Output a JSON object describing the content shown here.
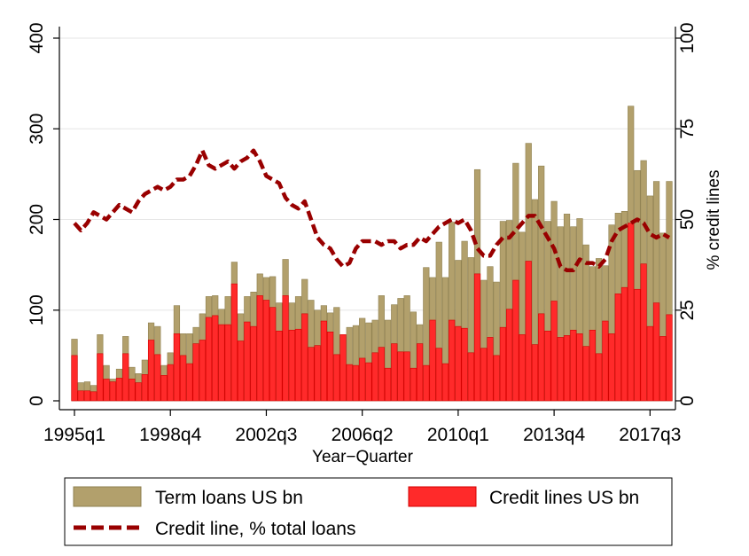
{
  "chart_data": {
    "type": "bar",
    "subtype": "stacked-bar-with-line",
    "title": "",
    "xlabel": "Year−Quarter",
    "ylabel": "",
    "y2label": "% credit lines",
    "ylim": [
      0,
      400
    ],
    "y2lim": [
      0,
      100
    ],
    "yticks": [
      "0",
      "100",
      "200",
      "300",
      "400"
    ],
    "y2ticks": [
      "0",
      "25",
      "50",
      "75",
      "100"
    ],
    "xtick_labels": [
      "1995q1",
      "1998q4",
      "2002q3",
      "2006q2",
      "2010q1",
      "2013q4",
      "2017q3"
    ],
    "grid": true,
    "legend_position": "bottom",
    "colors": {
      "term_loans": "#b2a06c",
      "term_loans_edge": "#8f8050",
      "credit_lines": "#ff2a2a",
      "credit_lines_edge": "#d40000",
      "pct_line": "#990000",
      "grid": "#e6e6e6"
    },
    "series": [
      {
        "name": "Term loans US bn",
        "kind": "bar-total",
        "values": [
          68,
          20,
          21,
          17,
          73,
          39,
          24,
          35,
          71,
          37,
          30,
          45,
          86,
          82,
          39,
          53,
          105,
          74,
          74,
          81,
          96,
          115,
          116,
          101,
          115,
          153,
          96,
          115,
          120,
          140,
          136,
          137,
          108,
          156,
          108,
          115,
          134,
          111,
          100,
          105,
          97,
          103,
          70,
          81,
          83,
          91,
          86,
          89,
          116,
          89,
          106,
          113,
          116,
          98,
          84,
          147,
          136,
          175,
          136,
          197,
          155,
          176,
          158,
          255,
          133,
          148,
          131,
          198,
          199,
          262,
          186,
          284,
          222,
          259,
          198,
          220,
          192,
          206,
          192,
          201,
          172,
          148,
          157,
          149,
          194,
          207,
          209,
          325,
          254,
          265,
          226,
          242,
          185,
          242
        ]
      },
      {
        "name": "Credit lines US bn",
        "kind": "bar-segment",
        "values": [
          50,
          11,
          11,
          10,
          52,
          24,
          21,
          25,
          52,
          24,
          20,
          29,
          67,
          51,
          28,
          40,
          74,
          50,
          41,
          63,
          67,
          92,
          94,
          84,
          84,
          129,
          66,
          87,
          82,
          116,
          111,
          103,
          77,
          116,
          78,
          79,
          96,
          59,
          61,
          88,
          76,
          51,
          73,
          40,
          39,
          47,
          42,
          53,
          59,
          36,
          63,
          54,
          54,
          36,
          63,
          39,
          89,
          58,
          41,
          89,
          82,
          80,
          53,
          140,
          58,
          70,
          50,
          81,
          101,
          133,
          73,
          154,
          62,
          96,
          77,
          110,
          70,
          72,
          78,
          74,
          60,
          78,
          52,
          88,
          74,
          118,
          125,
          196,
          123,
          151,
          82,
          108,
          71,
          95
        ]
      },
      {
        "name": "Credit line, % total loans",
        "kind": "line",
        "axis": "right",
        "values": [
          49,
          47,
          49,
          52,
          51,
          50,
          52,
          54,
          53,
          52,
          55,
          57,
          58,
          59,
          58,
          59,
          61,
          61,
          62,
          65,
          69,
          65,
          64,
          65,
          66,
          64,
          66,
          67,
          69,
          66,
          62,
          61,
          60,
          56,
          54,
          53,
          55,
          50,
          45,
          43,
          42,
          39,
          37,
          38,
          42,
          44,
          44,
          44,
          43,
          44,
          44,
          42,
          43,
          43,
          45,
          44,
          46,
          48,
          49,
          50,
          49,
          50,
          47,
          42,
          40,
          40,
          43,
          45,
          45,
          47,
          49,
          51,
          51,
          48,
          45,
          42,
          37,
          36,
          36,
          39,
          38,
          38,
          37,
          39,
          44,
          47,
          48,
          49,
          50,
          49,
          46,
          45,
          46,
          45
        ]
      }
    ]
  }
}
